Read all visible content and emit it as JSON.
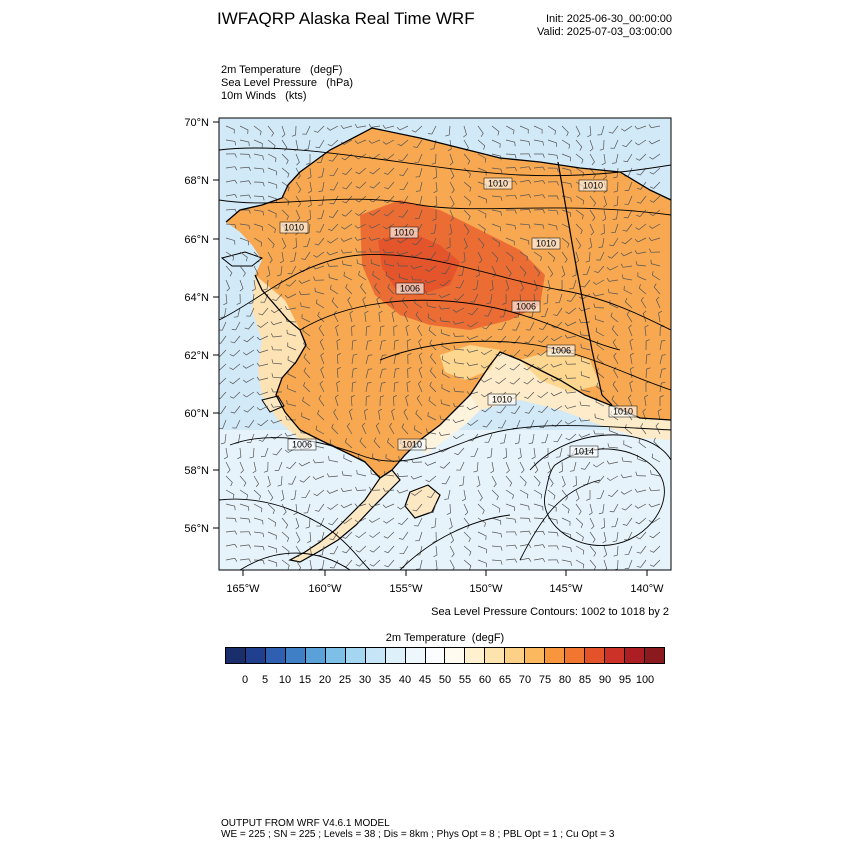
{
  "header": {
    "title": "IWFAQRP Alaska Real Time WRF",
    "init": "Init: 2025-06-30_00:00:00",
    "valid": "Valid: 2025-07-03_03:00:00"
  },
  "fields": [
    "2m Temperature   (degF)",
    "Sea Level Pressure   (hPa)",
    "10m Winds   (kts)"
  ],
  "map": {
    "lat_ticks": [
      "70°N",
      "68°N",
      "66°N",
      "64°N",
      "62°N",
      "60°N",
      "58°N",
      "56°N"
    ],
    "lon_ticks": [
      "165°W",
      "160°W",
      "155°W",
      "150°W",
      "145°W",
      "140°W"
    ],
    "pressure_labels": [
      "1010",
      "1010",
      "1010",
      "1010",
      "1010",
      "1006",
      "1006",
      "1006",
      "1006",
      "1010",
      "1010",
      "1010",
      "1014"
    ],
    "colors": {
      "ocean": "#cfe8f8",
      "land_warm": "#f6a24e",
      "land_hot": "#ec6a33",
      "land_cool": "#fde9c4"
    }
  },
  "slp_note": "Sea Level Pressure Contours: 1002 to 1018 by 2",
  "colorbar": {
    "title": "2m Temperature  (degF)",
    "colors": [
      "#1a2e6b",
      "#203f8e",
      "#2e5fb0",
      "#3f7fc6",
      "#5aa1d9",
      "#7ebfe8",
      "#a4d6f2",
      "#c6e6f7",
      "#def1fa",
      "#eef7fc",
      "#fbfdfe",
      "#fffbf0",
      "#fff0cf",
      "#fde3ad",
      "#fdd087",
      "#fbb85e",
      "#f8963d",
      "#f17731",
      "#e4522a",
      "#cc3228",
      "#ad1e24",
      "#8a1a1e"
    ],
    "labels": [
      "0",
      "5",
      "10",
      "15",
      "20",
      "25",
      "30",
      "35",
      "40",
      "45",
      "50",
      "55",
      "60",
      "65",
      "70",
      "75",
      "80",
      "85",
      "90",
      "95",
      "100"
    ]
  },
  "footer": {
    "line1": "OUTPUT FROM WRF V4.6.1 MODEL",
    "line2": "WE = 225 ; SN = 225 ; Levels = 38 ; Dis = 8km ; Phys Opt = 8 ; PBL Opt = 1 ; Cu Opt = 3"
  }
}
